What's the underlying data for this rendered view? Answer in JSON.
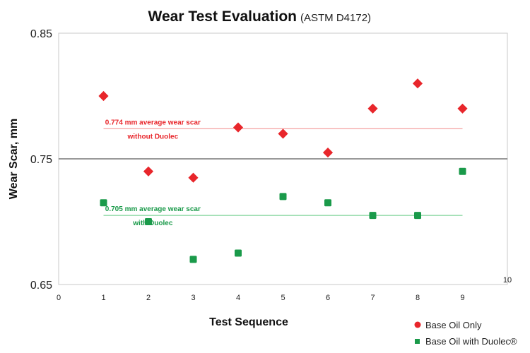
{
  "chart_data": {
    "type": "scatter",
    "title": "Wear Test Evaluation",
    "subtitle": "(ASTM D4172)",
    "xlabel": "Test Sequence",
    "ylabel": "Wear Scar, mm",
    "xlim": [
      0,
      10
    ],
    "ylim": [
      0.65,
      0.85
    ],
    "xticks": [
      "0",
      "1",
      "2",
      "3",
      "4",
      "5",
      "6",
      "7",
      "8",
      "9",
      "10"
    ],
    "yticks": [
      {
        "v": 0.65,
        "label": "0.65"
      },
      {
        "v": 0.75,
        "label": "0.75"
      },
      {
        "v": 0.85,
        "label": "0.85"
      }
    ],
    "series": [
      {
        "name": "Base Oil Only",
        "color": "#e8262b",
        "marker": "diamond",
        "x": [
          1,
          2,
          3,
          4,
          5,
          6,
          7,
          8,
          9
        ],
        "y": [
          0.8,
          0.74,
          0.735,
          0.775,
          0.77,
          0.755,
          0.79,
          0.81,
          0.79
        ],
        "average": 0.774,
        "avg_color": "#f4a0a0",
        "annotation": [
          "0.774 mm average wear scar",
          "without Duolec"
        ]
      },
      {
        "name": "Base Oil with Duolec®",
        "color": "#1a9a4a",
        "marker": "square",
        "x": [
          1,
          2,
          3,
          4,
          5,
          6,
          7,
          8,
          9
        ],
        "y": [
          0.715,
          0.7,
          0.67,
          0.675,
          0.72,
          0.715,
          0.705,
          0.705,
          0.74
        ],
        "average": 0.705,
        "avg_color": "#7fd49a",
        "annotation": [
          "0.705 mm average wear scar",
          "with Duolec"
        ]
      }
    ],
    "legend": "bottom-right"
  }
}
